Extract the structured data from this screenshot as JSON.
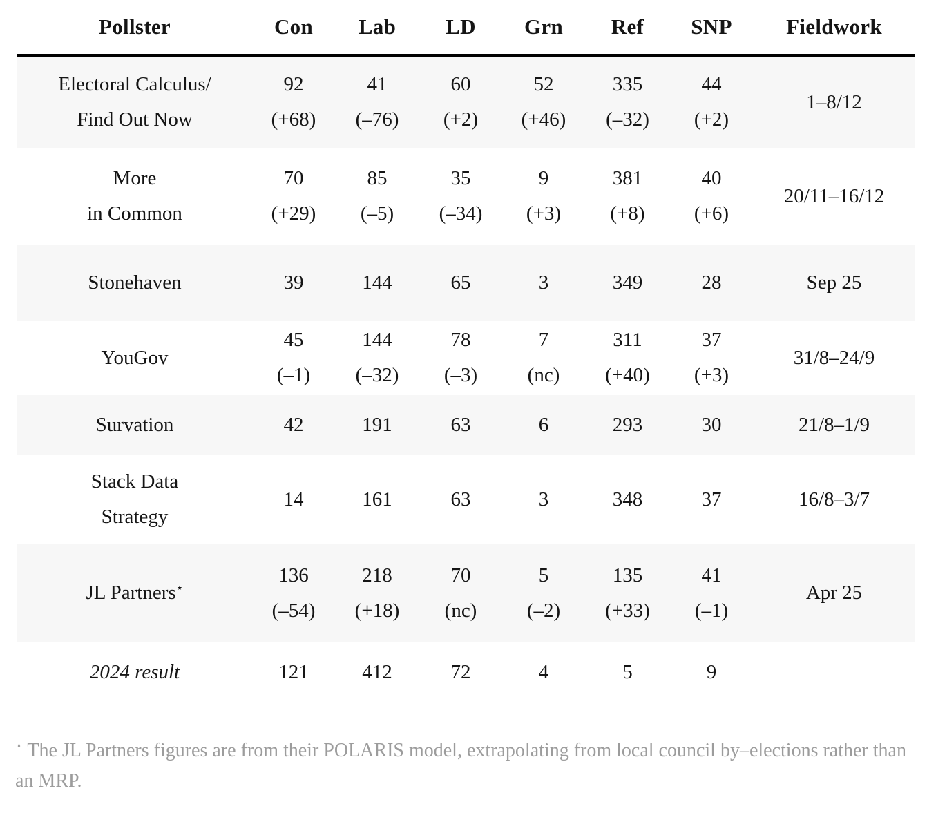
{
  "colors": {
    "row_stripe": "#f7f7f7",
    "text": "#151515",
    "footnote_text": "#9c9c9c",
    "heavy_rule": "#000000",
    "light_rule": "#e3e3e3"
  },
  "chart_data": {
    "type": "table",
    "columns": [
      "Pollster",
      "Con",
      "Lab",
      "LD",
      "Grn",
      "Ref",
      "SNP",
      "Fieldwork"
    ],
    "rows": [
      {
        "name1": "Electoral Calculus/",
        "name2": "Find Out Now",
        "con": "92",
        "con_chg": "(+68)",
        "lab": "41",
        "lab_chg": "(–76)",
        "ld": "60",
        "ld_chg": "(+2)",
        "grn": "52",
        "grn_chg": "(+46)",
        "ref": "335",
        "ref_chg": "(–32)",
        "snp": "44",
        "snp_chg": "(+2)",
        "fieldwork": "1–8/12"
      },
      {
        "name1": "More",
        "name2": "in Common",
        "con": "70",
        "con_chg": "(+29)",
        "lab": "85",
        "lab_chg": "(–5)",
        "ld": "35",
        "ld_chg": "(–34)",
        "grn": "9",
        "grn_chg": "(+3)",
        "ref": "381",
        "ref_chg": "(+8)",
        "snp": "40",
        "snp_chg": "(+6)",
        "fieldwork": "20/11–16/12"
      },
      {
        "name1": "Stonehaven",
        "con": "39",
        "lab": "144",
        "ld": "65",
        "grn": "3",
        "ref": "349",
        "snp": "28",
        "fieldwork": "Sep 25"
      },
      {
        "name1": "YouGov",
        "con": "45",
        "con_chg": "(–1)",
        "lab": "144",
        "lab_chg": "(–32)",
        "ld": "78",
        "ld_chg": "(–3)",
        "grn": "7",
        "grn_chg": "(nc)",
        "ref": "311",
        "ref_chg": "(+40)",
        "snp": "37",
        "snp_chg": "(+3)",
        "fieldwork": "31/8–24/9"
      },
      {
        "name1": "Survation",
        "con": "42",
        "lab": "191",
        "ld": "63",
        "grn": "6",
        "ref": "293",
        "snp": "30",
        "fieldwork": "21/8–1/9"
      },
      {
        "name1": "Stack Data",
        "name2": "Strategy",
        "con": "14",
        "lab": "161",
        "ld": "63",
        "grn": "3",
        "ref": "348",
        "snp": "37",
        "fieldwork": "16/8–3/7"
      },
      {
        "name1": "JL Partners",
        "marker": "⋆",
        "con": "136",
        "con_chg": "(–54)",
        "lab": "218",
        "lab_chg": "(+18)",
        "ld": "70",
        "ld_chg": "(nc)",
        "grn": "5",
        "grn_chg": "(–2)",
        "ref": "135",
        "ref_chg": "(+33)",
        "snp": "41",
        "snp_chg": "(–1)",
        "fieldwork": "Apr 25"
      },
      {
        "name1": "2024 result",
        "con": "121",
        "lab": "412",
        "ld": "72",
        "grn": "4",
        "ref": "5",
        "snp": "9"
      }
    ],
    "footnote": {
      "marker": "⋆",
      "text": "The JL Partners figures are from their POLARIS model, extrapolating from local council by–elections rather than an MRP."
    }
  }
}
